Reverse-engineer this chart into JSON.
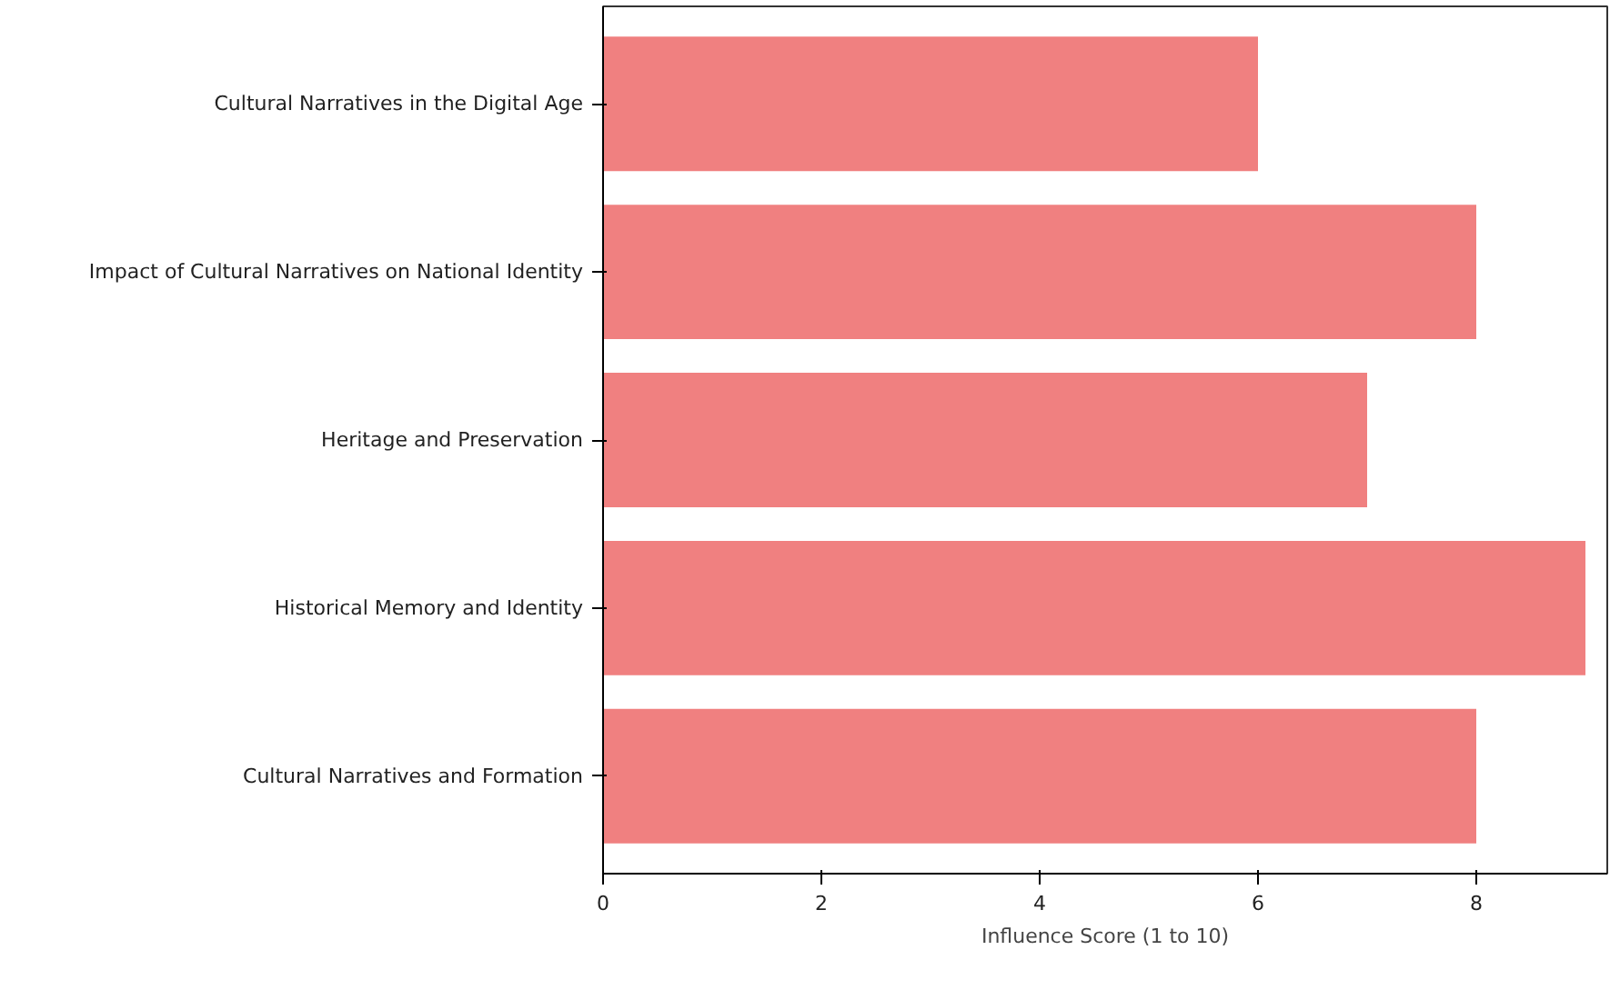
{
  "chart_data": {
    "type": "bar",
    "orientation": "horizontal",
    "xlabel": "Influence Score (1 to 10)",
    "categories": [
      "Cultural Narratives in the Digital Age",
      "Impact of Cultural Narratives on National Identity",
      "Heritage and Preservation",
      "Historical Memory and Identity",
      "Cultural Narratives and Formation"
    ],
    "values": [
      6,
      8,
      7,
      9,
      8
    ],
    "color": "#f08080",
    "xlim": [
      0,
      9.2
    ],
    "xticks": [
      0,
      2,
      4,
      6,
      8
    ],
    "grid": false
  }
}
